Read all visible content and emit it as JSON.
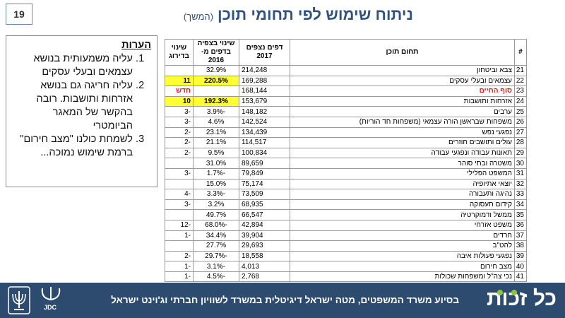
{
  "page_number": "19",
  "header": {
    "title": "ניתוח שימוש לפי תחומי תוכן",
    "subtitle": "(המשך)"
  },
  "notes": {
    "title": "הערות",
    "items": [
      "עליה משמעותית בנושא עצמאים ובעלי עסקים",
      "עליה חריגה גם בנושא אזרחות ותושבות. רובה בהקשר של המאגר הביומטרי",
      "לשמחת כולנו \"מצב חירום\" ברמת שימוש נמוכה..."
    ]
  },
  "table": {
    "columns": [
      "#",
      "תחום תוכן",
      "דפים נצפים 2017",
      "שינוי בצפיה בדפים מ- 2016",
      "שינוי בדירוג"
    ],
    "rows": [
      [
        "21",
        "צבא וביטחון",
        "214,248",
        "32.9%",
        ""
      ],
      [
        "22",
        "עצמאים ובעלי עסקים",
        "169,288",
        "220.5%",
        "11"
      ],
      [
        "23",
        "סוף החיים",
        "168,144",
        "",
        "חדש"
      ],
      [
        "24",
        "אזרחות ותושבות",
        "153,679",
        "192.3%",
        "10"
      ],
      [
        "25",
        "ערבים",
        "148,182",
        "-3.9%",
        "-3"
      ],
      [
        "26",
        "משפחות שבראשן הורה עצמאי (משפחות חד הוריות)",
        "142,524",
        "4.6%",
        "-3"
      ],
      [
        "27",
        "נפגעי נפש",
        "134,439",
        "23.1%",
        "-2"
      ],
      [
        "28",
        "עולים ותושבים חוזרים",
        "114,517",
        "21.1%",
        "-2"
      ],
      [
        "29",
        "תאונות עבודה ונפגעי עבודה",
        "100,834",
        "9.5%",
        "-2"
      ],
      [
        "30",
        "משטרה ובתי סוהר",
        "89,659",
        "31.0%",
        ""
      ],
      [
        "31",
        "המשפט הפלילי",
        "79,849",
        "-1.7%",
        "-3"
      ],
      [
        "32",
        "יוצאי אתיופיה",
        "75,174",
        "15.0%",
        ""
      ],
      [
        "33",
        "נהיגה ותעבורה",
        "73,509",
        "-3.3%",
        "-4"
      ],
      [
        "34",
        "קידום תעסוקה",
        "68,935",
        "3.2%",
        "-3"
      ],
      [
        "35",
        "ממשל ודמוקרטיה",
        "66,547",
        "49.7%",
        ""
      ],
      [
        "36",
        "משפט אזרחי",
        "42,894",
        "-68.0%",
        "-12"
      ],
      [
        "37",
        "חרדים",
        "39,904",
        "34.4%",
        "-1"
      ],
      [
        "38",
        "להט\"ב",
        "29,693",
        "27.7%",
        ""
      ],
      [
        "39",
        "נפגעי פעולות איבה",
        "18,558",
        "-29.7%",
        "-2"
      ],
      [
        "40",
        "מצב חירום",
        "4,013",
        "-3.1%",
        "-1"
      ],
      [
        "41",
        "נכי צה\"ל ומשפחות שכולות",
        "2,768",
        "-4.5%",
        "-1"
      ]
    ]
  },
  "footer": {
    "text": "בסיוע משרד המשפטים, מטה ישראל דיגיטלית במשרד לשוויון חברתי וג'וינט ישראל",
    "logo": "כל זכות",
    "partner": "JDC"
  }
}
